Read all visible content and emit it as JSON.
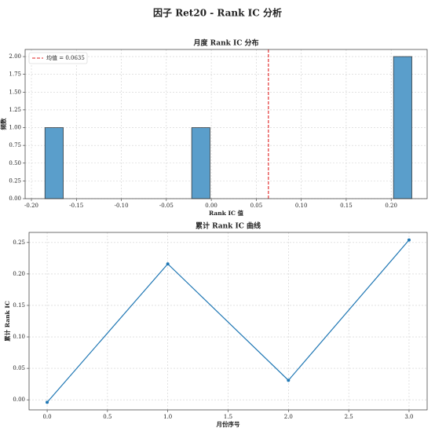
{
  "title": "因子 Ret20 - Rank IC 分析",
  "chart_data": [
    {
      "type": "histogram",
      "title": "月度 Rank IC 分布",
      "x_label": "Rank IC 值",
      "y_label": "频数",
      "bins": [
        -0.185,
        -0.1646,
        -0.1442,
        -0.1238,
        -0.1034,
        -0.083,
        -0.0626,
        -0.0422,
        -0.0218,
        -0.0014,
        0.019,
        0.0394,
        0.0598,
        0.0802,
        0.1006,
        0.121,
        0.1414,
        0.1618,
        0.1822,
        0.2026,
        0.223
      ],
      "counts": [
        1,
        0,
        0,
        0,
        0,
        0,
        0,
        0,
        1,
        0,
        0,
        0,
        0,
        0,
        0,
        0,
        0,
        0,
        0,
        2
      ],
      "color": "#5a9ecb",
      "edge_color": "#2b2b2b",
      "mean": 0.0635,
      "mean_label": "均值 = 0.0635",
      "mean_color": "#e02020",
      "legend": "upper left",
      "grid": true,
      "xlim": [
        -0.207,
        0.24
      ],
      "xticks": [
        {
          "value": -0.2,
          "label": "-0.20"
        },
        {
          "value": -0.15,
          "label": "-0.15"
        },
        {
          "value": -0.1,
          "label": "-0.10"
        },
        {
          "value": -0.05,
          "label": "-0.05"
        },
        {
          "value": 0,
          "label": "0.00"
        },
        {
          "value": 0.05,
          "label": "0.05"
        },
        {
          "value": 0.1,
          "label": "0.10"
        },
        {
          "value": 0.15,
          "label": "0.15"
        },
        {
          "value": 0.2,
          "label": "0.20"
        }
      ],
      "ylim": [
        0,
        2.1
      ],
      "yticks": [
        {
          "value": 0,
          "label": "0.00"
        },
        {
          "value": 0.25,
          "label": "0.25"
        },
        {
          "value": 0.5,
          "label": "0.50"
        },
        {
          "value": 0.75,
          "label": "0.75"
        },
        {
          "value": 1,
          "label": "1.00"
        },
        {
          "value": 1.25,
          "label": "1.25"
        },
        {
          "value": 1.5,
          "label": "1.50"
        },
        {
          "value": 1.75,
          "label": "1.75"
        },
        {
          "value": 2,
          "label": "2.00"
        }
      ]
    },
    {
      "type": "line",
      "title": "累计 Rank IC 曲线",
      "x_label": "月份序号",
      "y_label": "累计 Rank IC",
      "x": [
        0,
        1,
        2,
        3
      ],
      "values": [
        -0.004,
        0.216,
        0.031,
        0.254
      ],
      "color": "#1f77b4",
      "grid": true,
      "xlim": [
        -0.15,
        3.15
      ],
      "xticks": [
        {
          "value": 0,
          "label": "0.0"
        },
        0.5,
        {
          "value": 1,
          "label": "1.0"
        },
        1.5,
        {
          "value": 2,
          "label": "2.0"
        },
        2.5,
        {
          "value": 3,
          "label": "3.0"
        }
      ],
      "ylim": [
        -0.016,
        0.266
      ],
      "yticks": [
        {
          "value": 0,
          "label": "0.00"
        },
        0.05,
        {
          "value": 0.1,
          "label": "0.10"
        },
        0.15,
        {
          "value": 0.2,
          "label": "0.20"
        },
        0.25
      ]
    }
  ]
}
